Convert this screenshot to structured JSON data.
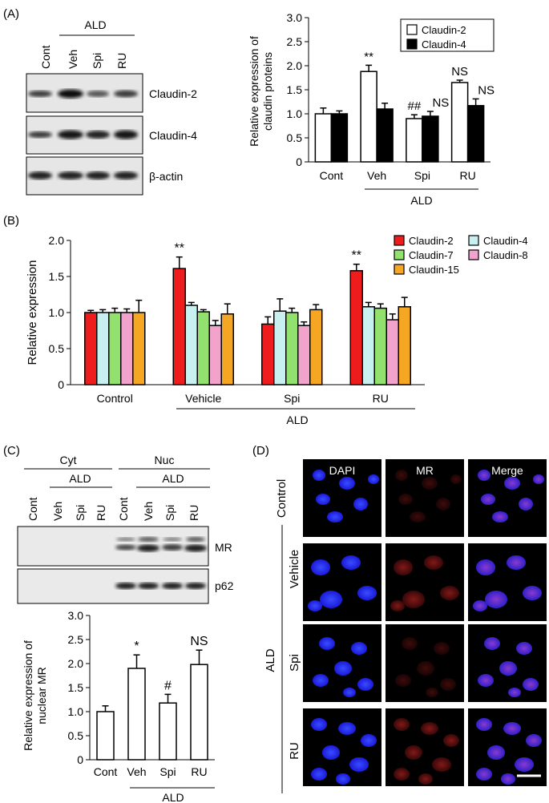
{
  "panels": {
    "A": {
      "label": "(A)",
      "blot_group": "ALD",
      "blot_lanes": [
        "Cont",
        "Veh",
        "Spi",
        "RU"
      ],
      "blot_rows": [
        "Claudin-2",
        "Claudin-4",
        "β-actin"
      ],
      "ylabel_line1": "Relative expression of",
      "ylabel_line2": "claudin proteins",
      "group_label": "ALD",
      "annotations": [
        {
          "text": "**",
          "category": "Veh",
          "series": "Claudin-2"
        },
        {
          "text": "##",
          "category": "Spi",
          "series": "Claudin-2"
        },
        {
          "text": "NS",
          "category": "Spi",
          "series": "Claudin-4"
        },
        {
          "text": "NS",
          "category": "RU",
          "series": "Claudin-2"
        },
        {
          "text": "NS",
          "category": "RU",
          "series": "Claudin-4"
        }
      ]
    },
    "B": {
      "label": "(B)",
      "ylabel": "Relative expression",
      "group_label": "ALD",
      "annotations": [
        {
          "text": "**",
          "category": "Vehicle",
          "series": "Claudin-2"
        },
        {
          "text": "**",
          "category": "RU",
          "series": "Claudin-2"
        }
      ]
    },
    "C": {
      "label": "(C)",
      "blot_cyt": "Cyt",
      "blot_nuc": "Nuc",
      "blot_group": "ALD",
      "blot_lanes": [
        "Cont",
        "Veh",
        "Spi",
        "RU",
        "Cont",
        "Veh",
        "Spi",
        "RU"
      ],
      "blot_rows": [
        "MR",
        "p62"
      ],
      "ylabel_line1": "Relative expression of",
      "ylabel_line2": "nuclear MR",
      "group_label": "ALD",
      "annotations": [
        {
          "text": "*",
          "category": "Veh"
        },
        {
          "text": "#",
          "category": "Spi"
        },
        {
          "text": "NS",
          "category": "RU"
        }
      ]
    },
    "D": {
      "label": "(D)",
      "columns": [
        "DAPI",
        "MR",
        "Merge"
      ],
      "rows": [
        "Control",
        "Vehicle",
        "Spi",
        "RU"
      ],
      "group_label": "ALD"
    }
  },
  "chart_data": [
    {
      "id": "A",
      "type": "bar",
      "categories": [
        "Cont",
        "Veh",
        "Spi",
        "RU"
      ],
      "series": [
        {
          "name": "Claudin-2",
          "color": "#ffffff",
          "values": [
            1.0,
            1.88,
            0.9,
            1.65
          ],
          "errors": [
            0.12,
            0.13,
            0.08,
            0.05
          ]
        },
        {
          "name": "Claudin-4",
          "color": "#000000",
          "values": [
            1.0,
            1.1,
            0.95,
            1.17
          ],
          "errors": [
            0.06,
            0.12,
            0.1,
            0.14
          ]
        }
      ],
      "ylim": [
        0,
        3.0
      ],
      "yticks": [
        0,
        0.5,
        1.0,
        1.5,
        2.0,
        2.5,
        3.0
      ],
      "legend": "top-right"
    },
    {
      "id": "B",
      "type": "bar",
      "categories": [
        "Control",
        "Vehicle",
        "Spi",
        "RU"
      ],
      "series": [
        {
          "name": "Claudin-2",
          "color": "#ee1c1c",
          "values": [
            1.0,
            1.61,
            0.84,
            1.58
          ],
          "errors": [
            0.03,
            0.16,
            0.1,
            0.09
          ]
        },
        {
          "name": "Claudin-4",
          "color": "#c8f0f0",
          "values": [
            1.0,
            1.1,
            1.02,
            1.08
          ],
          "errors": [
            0.04,
            0.04,
            0.17,
            0.06
          ]
        },
        {
          "name": "Claudin-7",
          "color": "#92e06e",
          "values": [
            1.0,
            1.01,
            1.0,
            1.06
          ],
          "errors": [
            0.06,
            0.03,
            0.06,
            0.06
          ]
        },
        {
          "name": "Claudin-8",
          "color": "#f2a3cc",
          "values": [
            1.0,
            0.82,
            0.82,
            0.9
          ],
          "errors": [
            0.05,
            0.07,
            0.05,
            0.08
          ]
        },
        {
          "name": "Claudin-15",
          "color": "#f5a623",
          "values": [
            1.0,
            0.98,
            1.04,
            1.08
          ],
          "errors": [
            0.17,
            0.14,
            0.07,
            0.13
          ]
        }
      ],
      "ylim": [
        0,
        2.0
      ],
      "yticks": [
        0,
        0.5,
        1.0,
        1.5,
        2.0
      ],
      "legend": "top-right"
    },
    {
      "id": "C",
      "type": "bar",
      "categories": [
        "Cont",
        "Veh",
        "Spi",
        "RU"
      ],
      "series": [
        {
          "color": "#ffffff",
          "values": [
            1.0,
            1.9,
            1.18,
            1.98
          ],
          "errors": [
            0.12,
            0.28,
            0.18,
            0.3
          ]
        }
      ],
      "ylim": [
        0,
        3.0
      ],
      "yticks": [
        0,
        0.5,
        1.0,
        1.5,
        2.0,
        2.5,
        3.0
      ]
    }
  ]
}
